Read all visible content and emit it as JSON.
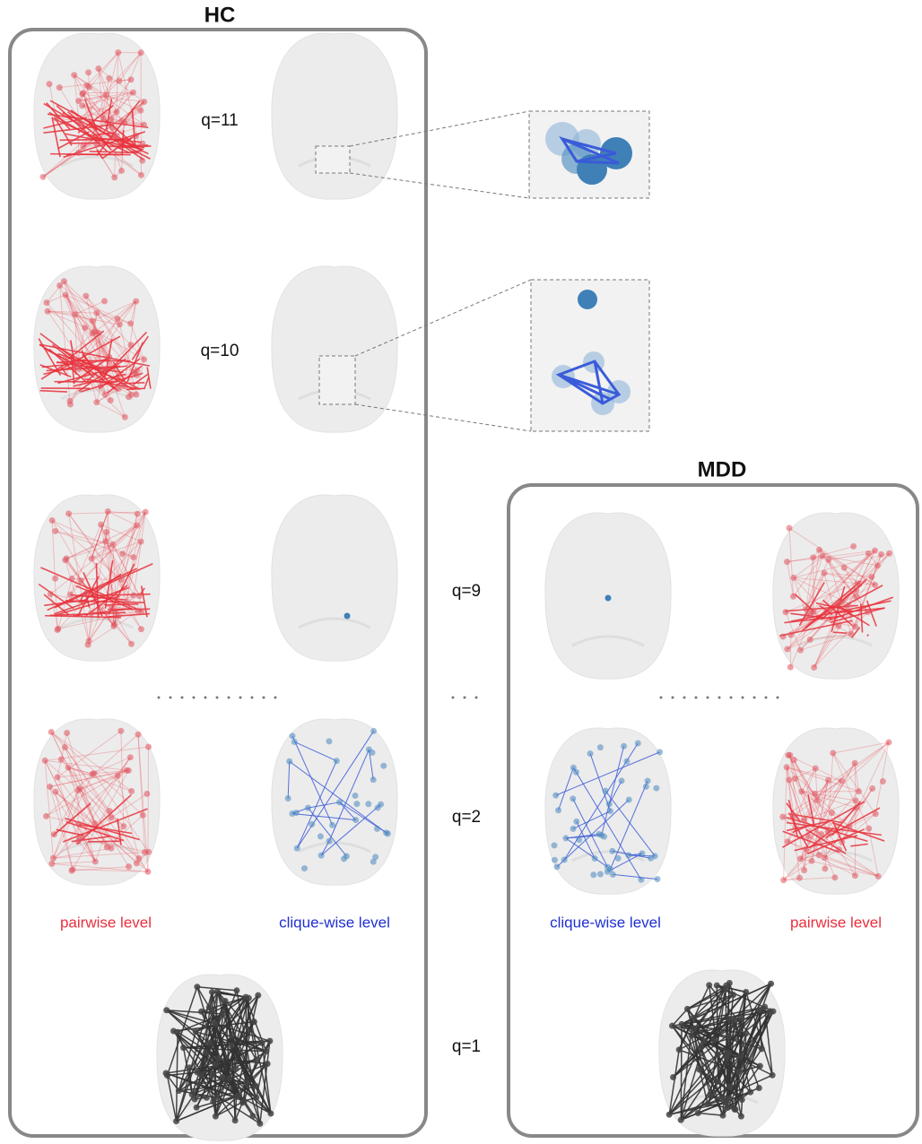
{
  "panels": {
    "hc": {
      "title": "HC",
      "pairwise_label": "pairwise level",
      "clique_label": "clique-wise level"
    },
    "mdd": {
      "title": "MDD",
      "clique_label": "clique-wise level",
      "pairwise_label": "pairwise level"
    }
  },
  "levels": [
    "q=11",
    "q=10",
    "q=9",
    "q=2",
    "q=1"
  ]
}
